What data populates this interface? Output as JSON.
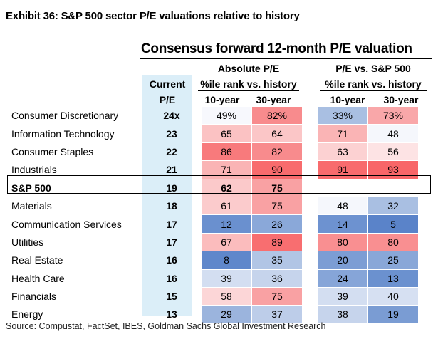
{
  "exhibit_title": "Exhibit 36: S&P 500 sector P/E valuations relative to history",
  "chart_title": "Consensus forward 12-month P/E valuation",
  "headers": {
    "absolute": "Absolute P/E",
    "relative": "P/E vs. S&P 500",
    "current_line1": "Current",
    "current_line2": "P/E",
    "pct_rank_abs": "%ile rank vs. history",
    "pct_rank_rel": "%ile rank vs. history",
    "ten_year_abs": "10-year",
    "thirty_year_abs": "30-year",
    "ten_year_rel": "10-year",
    "thirty_year_rel": "30-year"
  },
  "rows": [
    {
      "sector": "Consumer Discretionary",
      "pe": "24x",
      "abs10": "49%",
      "abs30": "82%",
      "rel10": "33%",
      "rel30": "73%",
      "c_abs10": "#f7f8fd",
      "c_abs30": "#f88b8d",
      "c_rel10": "#a9bfe2",
      "c_rel30": "#f9a7a9"
    },
    {
      "sector": "Information Technology",
      "pe": "23",
      "abs10": "65",
      "abs30": "64",
      "rel10": "71",
      "rel30": "48",
      "c_abs10": "#fbc2c3",
      "c_abs30": "#fbc6c7",
      "c_rel10": "#fab4b5",
      "c_rel30": "#f5f7fc"
    },
    {
      "sector": "Consumer Staples",
      "pe": "22",
      "abs10": "86",
      "abs30": "82",
      "rel10": "63",
      "rel30": "56",
      "c_abs10": "#f87a7c",
      "c_abs30": "#f88b8d",
      "c_rel10": "#fcd1d2",
      "c_rel30": "#fde3e4"
    },
    {
      "sector": "Industrials",
      "pe": "21",
      "abs10": "71",
      "abs30": "90",
      "rel10": "91",
      "rel30": "93",
      "c_abs10": "#fab4b5",
      "c_abs30": "#f86b6d",
      "c_rel10": "#f86b6d",
      "c_rel30": "#f86668"
    },
    {
      "sector": "S&P 500",
      "pe": "19",
      "abs10": "62",
      "abs30": "75",
      "rel10": "",
      "rel30": "",
      "c_abs10": "#fbc9ca",
      "c_abs30": "#f9a1a3",
      "c_rel10": "#ffffff",
      "c_rel30": "#ffffff"
    },
    {
      "sector": "Materials",
      "pe": "18",
      "abs10": "61",
      "abs30": "75",
      "rel10": "48",
      "rel30": "32",
      "c_abs10": "#fbcbcc",
      "c_abs30": "#f9a1a3",
      "c_rel10": "#f5f7fc",
      "c_rel30": "#a9bfe2"
    },
    {
      "sector": "Communication Services",
      "pe": "17",
      "abs10": "12",
      "abs30": "26",
      "rel10": "14",
      "rel30": "5",
      "c_abs10": "#6a90cf",
      "c_abs30": "#8aa8d9",
      "c_rel10": "#6d92d0",
      "c_rel30": "#5a83c9"
    },
    {
      "sector": "Utilities",
      "pe": "17",
      "abs10": "67",
      "abs30": "89",
      "rel10": "80",
      "rel30": "80",
      "c_abs10": "#fbbcbd",
      "c_abs30": "#f86e70",
      "c_rel10": "#f98f91",
      "c_rel30": "#f98f91"
    },
    {
      "sector": "Real Estate",
      "pe": "16",
      "abs10": "8",
      "abs30": "35",
      "rel10": "20",
      "rel30": "25",
      "c_abs10": "#5f87cb",
      "c_abs30": "#b1c5e5",
      "c_rel10": "#7c9dd4",
      "c_rel30": "#89a7d8"
    },
    {
      "sector": "Health Care",
      "pe": "16",
      "abs10": "39",
      "abs30": "36",
      "rel10": "24",
      "rel30": "13",
      "c_abs10": "#d3def1",
      "c_abs30": "#c6d4ec",
      "c_rel10": "#86a5d8",
      "c_rel30": "#6b91cf"
    },
    {
      "sector": "Financials",
      "pe": "15",
      "abs10": "58",
      "abs30": "75",
      "rel10": "39",
      "rel30": "40",
      "c_abs10": "#fcd6d7",
      "c_abs30": "#f9a1a3",
      "c_rel10": "#d3def1",
      "c_rel30": "#d6e0f2"
    },
    {
      "sector": "Energy",
      "pe": "13",
      "abs10": "29",
      "abs30": "37",
      "rel10": "38",
      "rel30": "19",
      "c_abs10": "#9bb4dd",
      "c_abs30": "#bdcde9",
      "c_rel10": "#c6d4ec",
      "c_rel30": "#7a9cd3"
    }
  ],
  "source": "Source: Compustat, FactSet, IBES, Goldman Sachs Global Investment Research"
}
